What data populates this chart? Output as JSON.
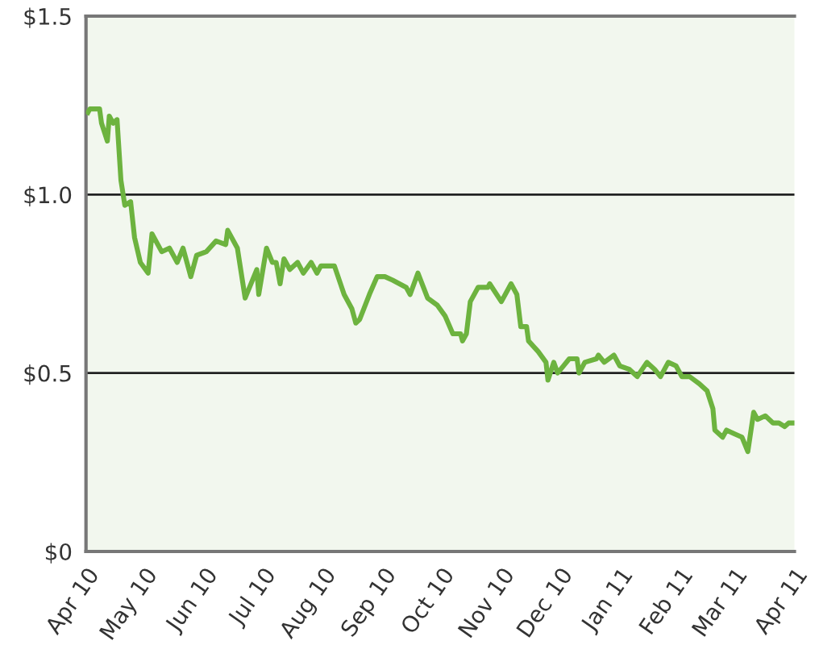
{
  "chart_data": {
    "type": "line",
    "x": [
      "2010-04-02",
      "2010-04-03",
      "2010-04-08",
      "2010-04-09",
      "2010-04-12",
      "2010-04-13",
      "2010-04-15",
      "2010-04-17",
      "2010-04-19",
      "2010-04-21",
      "2010-04-24",
      "2010-04-26",
      "2010-04-29",
      "2010-05-03",
      "2010-05-05",
      "2010-05-10",
      "2010-05-14",
      "2010-05-18",
      "2010-05-21",
      "2010-05-25",
      "2010-05-28",
      "2010-06-02",
      "2010-06-07",
      "2010-06-12",
      "2010-06-13",
      "2010-06-18",
      "2010-06-22",
      "2010-06-28",
      "2010-06-29",
      "2010-07-03",
      "2010-07-06",
      "2010-07-08",
      "2010-07-10",
      "2010-07-12",
      "2010-07-15",
      "2010-07-19",
      "2010-07-22",
      "2010-07-26",
      "2010-07-29",
      "2010-07-31",
      "2010-08-07",
      "2010-08-12",
      "2010-08-16",
      "2010-08-18",
      "2010-08-20",
      "2010-08-25",
      "2010-08-29",
      "2010-09-02",
      "2010-09-06",
      "2010-09-13",
      "2010-09-15",
      "2010-09-19",
      "2010-09-24",
      "2010-09-29",
      "2010-10-03",
      "2010-10-07",
      "2010-10-11",
      "2010-10-12",
      "2010-10-14",
      "2010-10-16",
      "2010-10-20",
      "2010-10-25",
      "2010-10-26",
      "2010-11-01",
      "2010-11-06",
      "2010-11-09",
      "2010-11-11",
      "2010-11-14",
      "2010-11-15",
      "2010-11-20",
      "2010-11-24",
      "2010-11-25",
      "2010-11-28",
      "2010-11-30",
      "2010-12-03",
      "2010-12-06",
      "2010-12-10",
      "2010-12-11",
      "2010-12-14",
      "2010-12-20",
      "2010-12-21",
      "2010-12-24",
      "2010-12-29",
      "2011-01-01",
      "2011-01-06",
      "2011-01-10",
      "2011-01-15",
      "2011-01-19",
      "2011-01-22",
      "2011-01-26",
      "2011-01-30",
      "2011-02-02",
      "2011-02-06",
      "2011-02-11",
      "2011-02-15",
      "2011-02-18",
      "2011-02-19",
      "2011-02-23",
      "2011-02-25",
      "2011-03-01",
      "2011-03-05",
      "2011-03-08",
      "2011-03-11",
      "2011-03-13",
      "2011-03-17",
      "2011-03-21",
      "2011-03-24",
      "2011-03-27",
      "2011-03-29",
      "2011-04-01"
    ],
    "series": [
      {
        "color": "#6db33f",
        "values": [
          1.23,
          1.24,
          1.24,
          1.2,
          1.15,
          1.22,
          1.2,
          1.21,
          1.04,
          0.97,
          0.98,
          0.88,
          0.81,
          0.78,
          0.89,
          0.84,
          0.85,
          0.81,
          0.85,
          0.77,
          0.83,
          0.84,
          0.87,
          0.86,
          0.9,
          0.85,
          0.71,
          0.79,
          0.72,
          0.85,
          0.81,
          0.81,
          0.75,
          0.82,
          0.79,
          0.81,
          0.78,
          0.81,
          0.78,
          0.8,
          0.8,
          0.72,
          0.68,
          0.64,
          0.65,
          0.72,
          0.77,
          0.77,
          0.76,
          0.74,
          0.72,
          0.78,
          0.71,
          0.69,
          0.66,
          0.61,
          0.61,
          0.59,
          0.61,
          0.7,
          0.74,
          0.74,
          0.75,
          0.7,
          0.75,
          0.72,
          0.63,
          0.63,
          0.59,
          0.56,
          0.53,
          0.48,
          0.53,
          0.5,
          0.52,
          0.54,
          0.54,
          0.5,
          0.53,
          0.54,
          0.55,
          0.53,
          0.55,
          0.52,
          0.51,
          0.49,
          0.53,
          0.51,
          0.49,
          0.53,
          0.52,
          0.49,
          0.49,
          0.47,
          0.45,
          0.4,
          0.34,
          0.32,
          0.34,
          0.33,
          0.32,
          0.28,
          0.39,
          0.37,
          0.38,
          0.36,
          0.36,
          0.35,
          0.36,
          0.36
        ]
      }
    ],
    "xlim": [
      "2010-04-01",
      "2011-04-01"
    ],
    "xticks": [
      {
        "value": "2010-04-01",
        "label": "Apr 10"
      },
      {
        "value": "2010-05-01",
        "label": "May 10"
      },
      {
        "value": "2010-06-01",
        "label": "Jun 10"
      },
      {
        "value": "2010-07-01",
        "label": "Jul 10"
      },
      {
        "value": "2010-08-01",
        "label": "Aug 10"
      },
      {
        "value": "2010-09-01",
        "label": "Sep 10"
      },
      {
        "value": "2010-10-01",
        "label": "Oct 10"
      },
      {
        "value": "2010-11-01",
        "label": "Nov 10"
      },
      {
        "value": "2010-12-01",
        "label": "Dec 10"
      },
      {
        "value": "2011-01-01",
        "label": "Jan 11"
      },
      {
        "value": "2011-02-01",
        "label": "Feb 11"
      },
      {
        "value": "2011-03-01",
        "label": "Mar 11"
      },
      {
        "value": "2011-04-01",
        "label": "Apr 11"
      }
    ],
    "ylim": [
      0,
      1.5
    ],
    "yticks": [
      {
        "value": 0,
        "label": "$0"
      },
      {
        "value": 0.5,
        "label": "$0.5"
      },
      {
        "value": 1.0,
        "label": "$1.0"
      },
      {
        "value": 1.5,
        "label": "$1.5"
      }
    ],
    "grid": "y",
    "marker": "none",
    "line_style": "solid"
  }
}
